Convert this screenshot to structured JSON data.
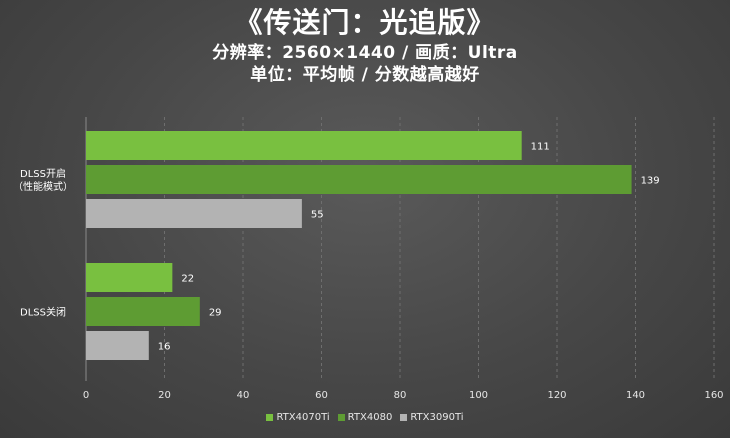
{
  "title": "《传送门：光追版》",
  "subtitle1": "分辨率：2560×1440 / 画质：Ultra",
  "subtitle2": "单位：平均帧 / 分数越高越好",
  "chart_data": {
    "type": "bar",
    "orientation": "horizontal",
    "categories": [
      "DLSS开启\n（性能模式）",
      "DLSS关闭"
    ],
    "series": [
      {
        "name": "RTX4070Ti",
        "color": "#79c040",
        "values": [
          111,
          22
        ]
      },
      {
        "name": "RTX4080",
        "color": "#5e9c33",
        "values": [
          139,
          29
        ]
      },
      {
        "name": "RTX3090Ti",
        "color": "#b3b3b3",
        "values": [
          55,
          16
        ]
      }
    ],
    "xlim": [
      0,
      160
    ],
    "xticks": [
      0,
      20,
      40,
      60,
      80,
      100,
      120,
      140,
      160
    ],
    "grid": true,
    "legend_position": "bottom"
  }
}
